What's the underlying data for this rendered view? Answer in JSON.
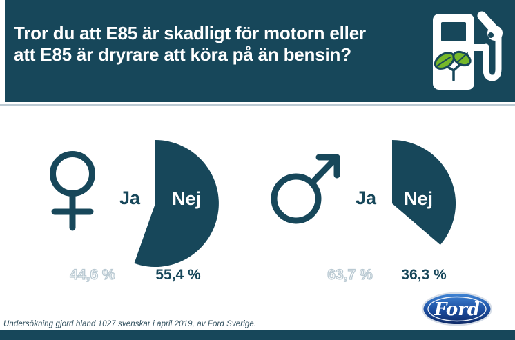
{
  "colors": {
    "navy": "#17475a",
    "leaf_green": "#76b82a",
    "pct_outline": "#b9c9d2",
    "ford_blue_light": "#3f83d4",
    "ford_blue_dark": "#0f2a66"
  },
  "header": {
    "title_line1": "Tror du att E85 är skadligt för motorn eller",
    "title_line2": "att E85 är dryrare att köra på än bensin?",
    "icon": "eco-fuel-pump-icon"
  },
  "chart_data": [
    {
      "type": "pie",
      "group": "women",
      "group_icon": "female-symbol-icon",
      "start_angle_deg": 0,
      "direction": "clockwise",
      "legend_position": "inside",
      "segments": [
        {
          "label": "Ja",
          "value": 44.6,
          "display": "44,6 %",
          "color": "#ffffff",
          "style": "outlined"
        },
        {
          "label": "Nej",
          "value": 55.4,
          "display": "55,4 %",
          "color": "#17475a",
          "style": "solid"
        }
      ]
    },
    {
      "type": "pie",
      "group": "men",
      "group_icon": "male-symbol-icon",
      "start_angle_deg": 0,
      "direction": "clockwise",
      "legend_position": "inside",
      "segments": [
        {
          "label": "Ja",
          "value": 63.7,
          "display": "63,7 %",
          "color": "#ffffff",
          "style": "outlined"
        },
        {
          "label": "Nej",
          "value": 36.3,
          "display": "36,3 %",
          "color": "#17475a",
          "style": "solid"
        }
      ]
    }
  ],
  "footer": {
    "note": "Undersökning gjord bland 1027 svenskar i april 2019, av Ford Sverige.",
    "logo": "ford-logo",
    "logo_text": "Ford"
  }
}
